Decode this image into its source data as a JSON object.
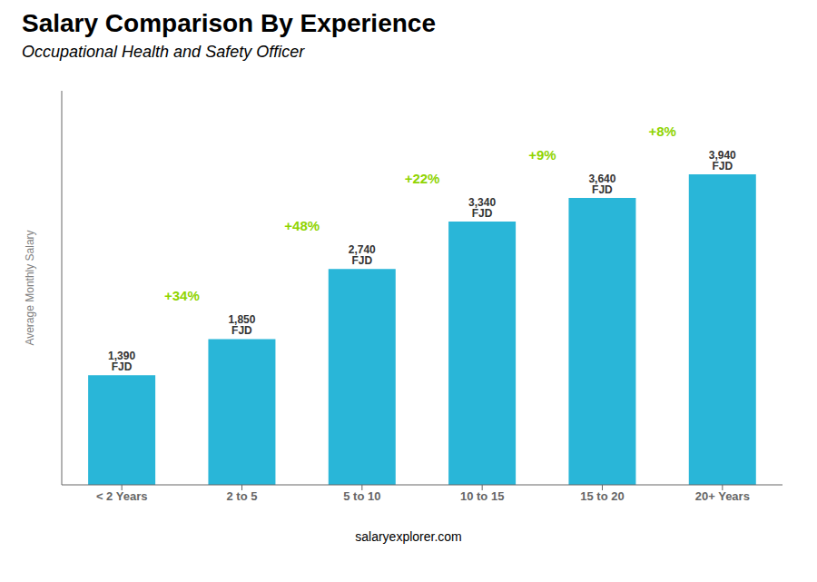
{
  "chart_data": {
    "type": "bar",
    "title": "Salary Comparison By Experience",
    "subtitle": "Occupational Health and Safety Officer",
    "y_label": "Average Monthly Salary",
    "footer": "salaryexplorer.com",
    "categories": [
      "< 2 Years",
      "2 to 5",
      "5 to 10",
      "10 to 15",
      "15 to 20",
      "20+ Years"
    ],
    "values": [
      1390,
      1850,
      2740,
      3340,
      3640,
      3940
    ],
    "value_labels": [
      "1,390 FJD",
      "1,850 FJD",
      "2,740 FJD",
      "3,340 FJD",
      "3,640 FJD",
      "3,940 FJD"
    ],
    "data_labels": true,
    "color": "#29b6d8",
    "ylim": [
      0,
      5000
    ],
    "tick_labels": "x",
    "grid": false,
    "annotations": [
      {
        "text": "+34%",
        "color": "#8fd400"
      },
      {
        "text": "+48%",
        "color": "#8fd400"
      },
      {
        "text": "+22%",
        "color": "#8fd400"
      },
      {
        "text": "+9%",
        "color": "#8fd400"
      },
      {
        "text": "+8%",
        "color": "#8fd400"
      }
    ]
  }
}
